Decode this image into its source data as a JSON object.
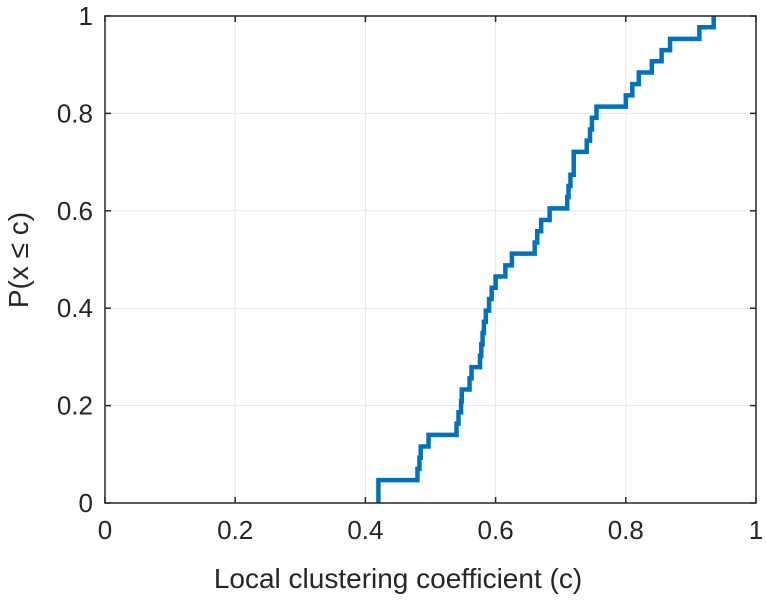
{
  "chart_data": {
    "type": "line",
    "title": "",
    "xlabel": "Local clustering coefficient (c)",
    "ylabel": "P(x ≤ c)",
    "xlim": [
      0,
      1
    ],
    "ylim": [
      0,
      1
    ],
    "xticks": [
      0,
      0.2,
      0.4,
      0.6,
      0.8,
      1
    ],
    "xtick_labels": [
      "0",
      "0.2",
      "0.4",
      "0.6",
      "0.8",
      "1"
    ],
    "yticks": [
      0,
      0.2,
      0.4,
      0.6,
      0.8,
      1
    ],
    "ytick_labels": [
      "0",
      "0.2",
      "0.4",
      "0.6",
      "0.8",
      "1"
    ],
    "grid": true,
    "legend": false,
    "series": [
      {
        "color": "#0072BD",
        "step": true,
        "points": [
          [
            0.42,
            0.0
          ],
          [
            0.42,
            0.047
          ],
          [
            0.48,
            0.047
          ],
          [
            0.48,
            0.07
          ],
          [
            0.483,
            0.07
          ],
          [
            0.483,
            0.093
          ],
          [
            0.485,
            0.093
          ],
          [
            0.485,
            0.116
          ],
          [
            0.497,
            0.116
          ],
          [
            0.497,
            0.14
          ],
          [
            0.54,
            0.14
          ],
          [
            0.54,
            0.163
          ],
          [
            0.543,
            0.163
          ],
          [
            0.543,
            0.186
          ],
          [
            0.547,
            0.186
          ],
          [
            0.547,
            0.209
          ],
          [
            0.548,
            0.209
          ],
          [
            0.548,
            0.233
          ],
          [
            0.56,
            0.233
          ],
          [
            0.56,
            0.256
          ],
          [
            0.563,
            0.256
          ],
          [
            0.563,
            0.279
          ],
          [
            0.576,
            0.279
          ],
          [
            0.576,
            0.302
          ],
          [
            0.578,
            0.302
          ],
          [
            0.578,
            0.326
          ],
          [
            0.58,
            0.326
          ],
          [
            0.58,
            0.349
          ],
          [
            0.582,
            0.349
          ],
          [
            0.582,
            0.372
          ],
          [
            0.585,
            0.372
          ],
          [
            0.585,
            0.395
          ],
          [
            0.59,
            0.395
          ],
          [
            0.59,
            0.419
          ],
          [
            0.594,
            0.419
          ],
          [
            0.594,
            0.442
          ],
          [
            0.6,
            0.442
          ],
          [
            0.6,
            0.465
          ],
          [
            0.615,
            0.465
          ],
          [
            0.615,
            0.488
          ],
          [
            0.625,
            0.488
          ],
          [
            0.625,
            0.512
          ],
          [
            0.66,
            0.512
          ],
          [
            0.66,
            0.535
          ],
          [
            0.664,
            0.535
          ],
          [
            0.664,
            0.558
          ],
          [
            0.67,
            0.558
          ],
          [
            0.67,
            0.581
          ],
          [
            0.683,
            0.581
          ],
          [
            0.683,
            0.605
          ],
          [
            0.71,
            0.605
          ],
          [
            0.71,
            0.628
          ],
          [
            0.712,
            0.628
          ],
          [
            0.712,
            0.651
          ],
          [
            0.715,
            0.651
          ],
          [
            0.715,
            0.674
          ],
          [
            0.72,
            0.674
          ],
          [
            0.72,
            0.698
          ],
          [
            0.72,
            0.721
          ],
          [
            0.74,
            0.721
          ],
          [
            0.74,
            0.744
          ],
          [
            0.745,
            0.744
          ],
          [
            0.745,
            0.767
          ],
          [
            0.748,
            0.767
          ],
          [
            0.748,
            0.791
          ],
          [
            0.755,
            0.791
          ],
          [
            0.755,
            0.814
          ],
          [
            0.8,
            0.814
          ],
          [
            0.8,
            0.837
          ],
          [
            0.81,
            0.837
          ],
          [
            0.81,
            0.86
          ],
          [
            0.82,
            0.86
          ],
          [
            0.82,
            0.884
          ],
          [
            0.84,
            0.884
          ],
          [
            0.84,
            0.907
          ],
          [
            0.855,
            0.907
          ],
          [
            0.855,
            0.93
          ],
          [
            0.868,
            0.93
          ],
          [
            0.868,
            0.953
          ],
          [
            0.913,
            0.953
          ],
          [
            0.913,
            0.977
          ],
          [
            0.935,
            0.977
          ],
          [
            0.935,
            1.0
          ]
        ]
      }
    ]
  }
}
